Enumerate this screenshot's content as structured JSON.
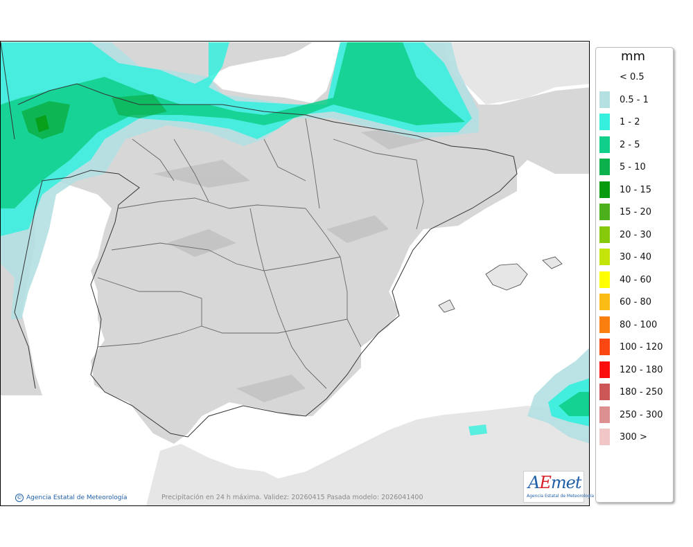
{
  "map": {
    "credit": "Agencia Estatal de Meteorología",
    "caption": "Precipitación en 24 h máxima. Validez: 20260415 Pasada modelo: 2026041400",
    "logo_text_prefix": "A",
    "logo_text_accent": "E",
    "logo_text_suffix": "met",
    "logo_subtext": "Agencia Estatal de Meteorología"
  },
  "legend": {
    "unit": "mm",
    "items": [
      {
        "label": "< 0.5",
        "color": "#ffffff"
      },
      {
        "label": "0.5 - 1",
        "color": "#b4e0e2"
      },
      {
        "label": "1 - 2",
        "color": "#35f0de"
      },
      {
        "label": "2 - 5",
        "color": "#0fcf8a"
      },
      {
        "label": "5 - 10",
        "color": "#0cb14b"
      },
      {
        "label": "10 - 15",
        "color": "#079a0e"
      },
      {
        "label": "15 - 20",
        "color": "#4cb01c"
      },
      {
        "label": "20 - 30",
        "color": "#86c90a"
      },
      {
        "label": "30 - 40",
        "color": "#c4e40a"
      },
      {
        "label": "40 - 60",
        "color": "#ffff00"
      },
      {
        "label": "60 - 80",
        "color": "#fbbc15"
      },
      {
        "label": "80 - 100",
        "color": "#fb7f0f"
      },
      {
        "label": "100 - 120",
        "color": "#fb4712"
      },
      {
        "label": "120 - 180",
        "color": "#fb0d0d"
      },
      {
        "label": "180 - 250",
        "color": "#cd5657"
      },
      {
        "label": "250 - 300",
        "color": "#dd9090"
      },
      {
        "label": "300 >",
        "color": "#f0c6c6"
      }
    ]
  }
}
